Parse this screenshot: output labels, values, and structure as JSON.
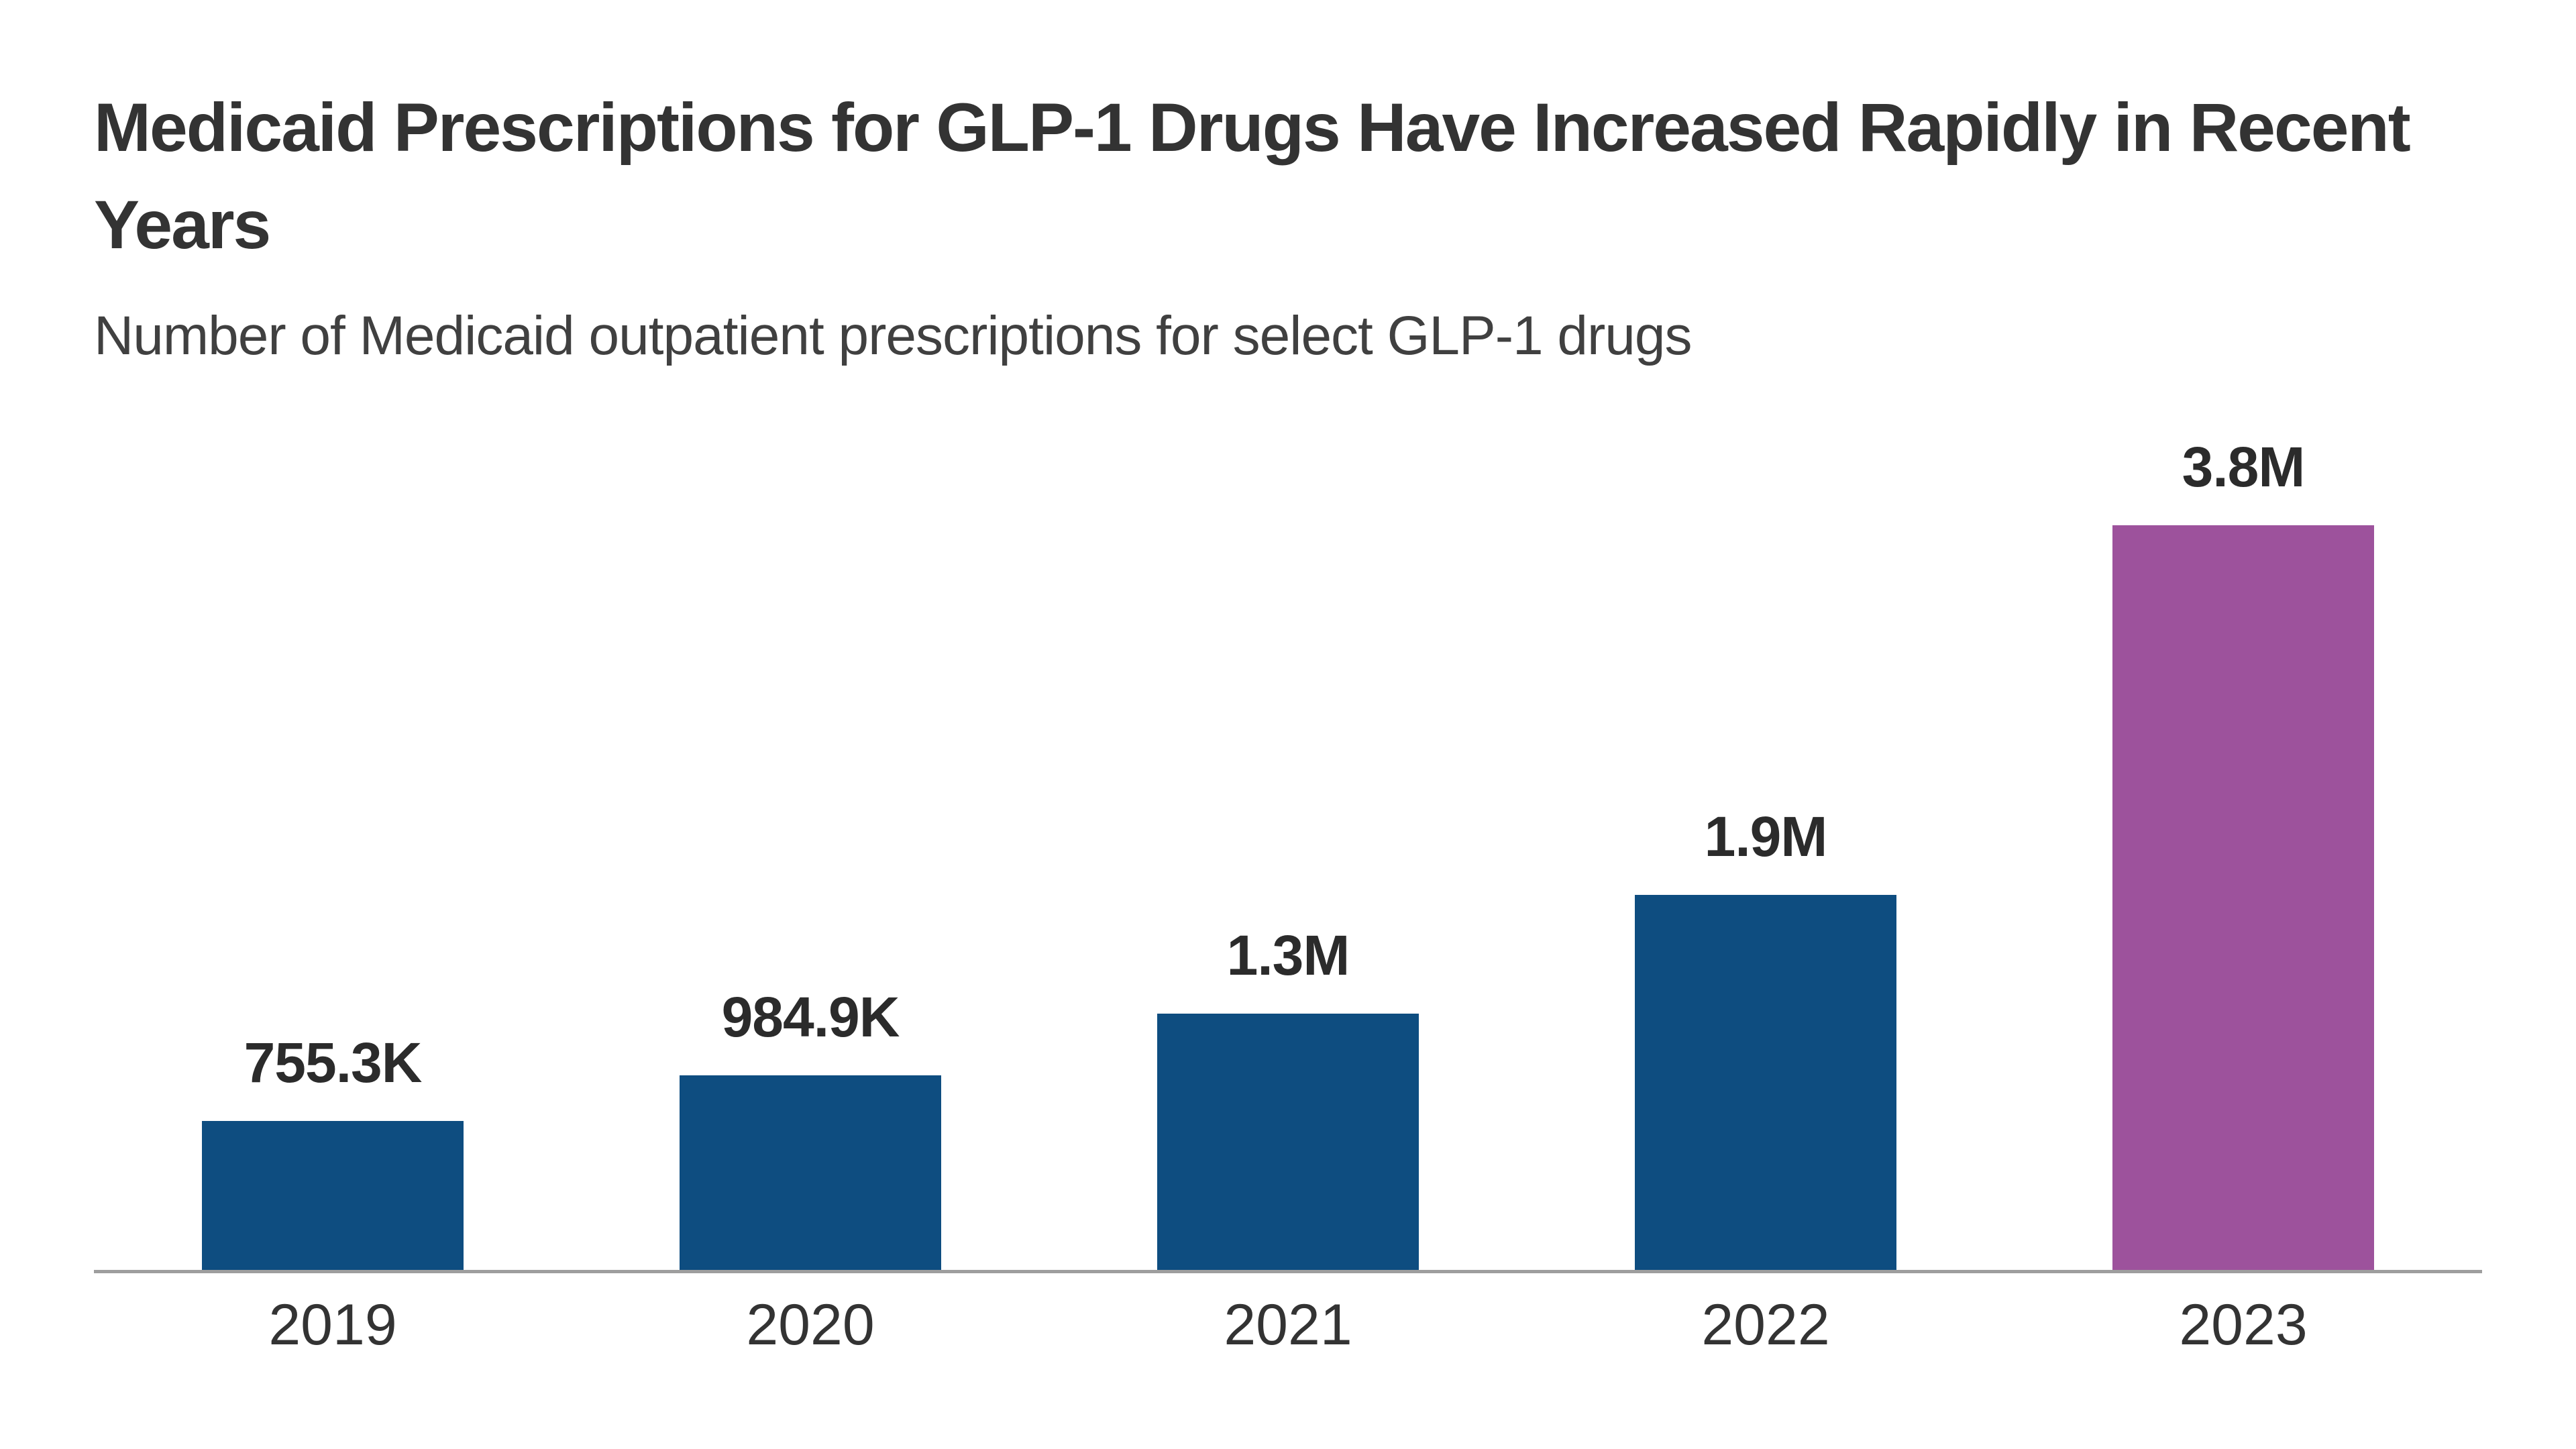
{
  "header": {
    "title": "Medicaid Prescriptions for GLP-1 Drugs Have Increased Rapidly in Recent Years",
    "subtitle": "Number of Medicaid outpatient prescriptions for select GLP-1 drugs"
  },
  "chart_data": {
    "type": "bar",
    "title": "Medicaid Prescriptions for GLP-1 Drugs Have Increased Rapidly in Recent Years",
    "subtitle": "Number of Medicaid outpatient prescriptions for select GLP-1 drugs",
    "categories": [
      "2019",
      "2020",
      "2021",
      "2022",
      "2023"
    ],
    "values": [
      755300,
      984900,
      1300000,
      1900000,
      3800000
    ],
    "value_labels": [
      "755.3K",
      "984.9K",
      "1.3M",
      "1.9M",
      "3.8M"
    ],
    "xlabel": "",
    "ylabel": "",
    "ylim": [
      0,
      3800000
    ],
    "grid": false,
    "legend": false,
    "y_axis_visible": false,
    "bar_colors": [
      "#0E4D80",
      "#0E4D80",
      "#0E4D80",
      "#0E4D80",
      "#9D529C"
    ],
    "highlight_category": "2023",
    "colors": {
      "primary_bar": "#0E4D80",
      "highlight_bar": "#9D529C",
      "title_text": "#333333",
      "subtitle_text": "#404040",
      "label_text": "#2b2b2b",
      "axis_line": "#9e9e9e",
      "background": "#ffffff"
    }
  }
}
